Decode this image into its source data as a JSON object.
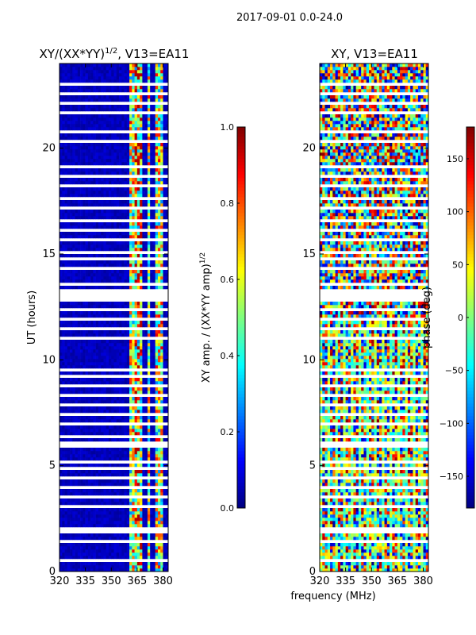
{
  "suptitle": "2017-09-01 0.0-24.0",
  "colors": {
    "jet": [
      "#00007f",
      "#0000ff",
      "#007fff",
      "#00ffff",
      "#7fff7f",
      "#ffff00",
      "#ff7f00",
      "#ff0000",
      "#7f0000"
    ],
    "gap": "#ffffff",
    "axis": "#000000"
  },
  "chart_data": [
    {
      "type": "heatmap",
      "id": "amp",
      "title": "XY/(XX*YY)",
      "title_superscript": "1/2",
      "title_suffix": ", V13=EA11",
      "xlabel": "",
      "ylabel": "UT (hours)",
      "xlim": [
        320,
        383
      ],
      "ylim": [
        0,
        24
      ],
      "xticks": [
        320,
        335,
        350,
        365,
        380
      ],
      "yticks": [
        0,
        5,
        10,
        15,
        20
      ],
      "colorbar": {
        "label": "XY amp. / (XX*YY amp)",
        "label_superscript": "1/2",
        "range": [
          0.0,
          1.0
        ],
        "ticks": [
          0.0,
          0.2,
          0.4,
          0.6,
          0.8,
          1.0
        ],
        "tick_labels": [
          "0.0",
          "0.2",
          "0.4",
          "0.6",
          "0.8",
          "1.0"
        ]
      },
      "pattern": {
        "background_value": 0.03,
        "bright_bands_mhz": [
          [
            360,
            364
          ],
          [
            364,
            368
          ],
          [
            371,
            373
          ],
          [
            376,
            380
          ]
        ],
        "band_value_range": [
          0.25,
          0.9
        ],
        "strong_band_mhz": [
          364,
          368
        ],
        "strong_value": 0.95
      }
    },
    {
      "type": "heatmap",
      "id": "phase",
      "title": "XY, V13=EA11",
      "xlabel": "frequency (MHz)",
      "ylabel": "",
      "xlim": [
        320,
        383
      ],
      "ylim": [
        0,
        24
      ],
      "xticks": [
        320,
        335,
        350,
        365,
        380
      ],
      "yticks": [
        0,
        5,
        10,
        15,
        20
      ],
      "colorbar": {
        "label": "phase (deg)",
        "range": [
          -180,
          180
        ],
        "ticks": [
          -150,
          -100,
          -50,
          0,
          50,
          100,
          150
        ],
        "tick_labels": [
          "−150",
          "−100",
          "−50",
          "0",
          "50",
          "100",
          "150"
        ]
      },
      "pattern": {
        "value_range": [
          -180,
          180
        ],
        "description": "random phases, vertical stripes below 12 h"
      }
    }
  ],
  "flagged_time_gaps_hours": [
    [
      0.45,
      0.55
    ],
    [
      1.3,
      1.45
    ],
    [
      1.8,
      2.05
    ],
    [
      2.5,
      2.6
    ],
    [
      3.0,
      3.1
    ],
    [
      3.45,
      3.55
    ],
    [
      3.95,
      4.05
    ],
    [
      4.4,
      4.55
    ],
    [
      4.85,
      4.95
    ],
    [
      5.1,
      5.25
    ],
    [
      5.9,
      6.1
    ],
    [
      6.35,
      6.5
    ],
    [
      6.9,
      7.0
    ],
    [
      7.35,
      7.45
    ],
    [
      7.8,
      7.95
    ],
    [
      8.3,
      8.45
    ],
    [
      8.75,
      8.85
    ],
    [
      9.2,
      9.35
    ],
    [
      9.45,
      9.6
    ],
    [
      10.15,
      10.25
    ],
    [
      10.6,
      10.7
    ],
    [
      11.0,
      11.1
    ],
    [
      11.45,
      11.55
    ],
    [
      11.9,
      12.0
    ],
    [
      12.3,
      12.45
    ],
    [
      12.7,
      13.3
    ],
    [
      13.45,
      13.65
    ],
    [
      13.9,
      14.0
    ],
    [
      14.3,
      14.45
    ],
    [
      14.75,
      14.85
    ],
    [
      15.05,
      15.2
    ],
    [
      15.6,
      15.7
    ],
    [
      16.1,
      16.2
    ],
    [
      16.55,
      16.65
    ],
    [
      17.05,
      17.2
    ],
    [
      17.6,
      17.75
    ],
    [
      18.15,
      18.25
    ],
    [
      18.6,
      18.75
    ],
    [
      19.1,
      19.2
    ],
    [
      19.6,
      19.7
    ],
    [
      20.25,
      20.35
    ],
    [
      20.75,
      20.85
    ],
    [
      21.6,
      21.7
    ],
    [
      22.1,
      22.2
    ],
    [
      22.55,
      22.7
    ],
    [
      23.0,
      23.1
    ],
    [
      23.65,
      23.75
    ]
  ]
}
